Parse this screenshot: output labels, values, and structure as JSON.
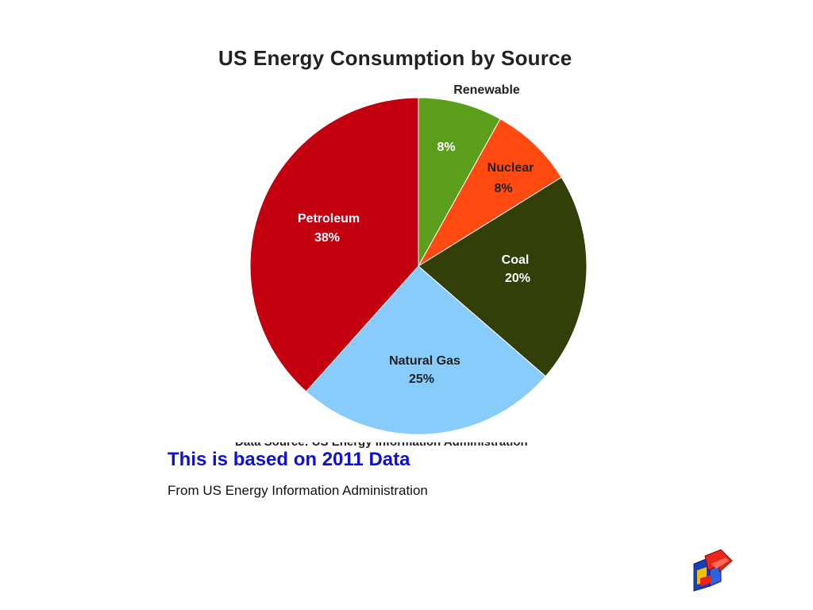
{
  "chart_data": {
    "type": "pie",
    "title": "US Energy Consumption by Source",
    "categories": [
      "Renewable",
      "Nuclear",
      "Coal",
      "Natural Gas",
      "Petroleum"
    ],
    "values": [
      8,
      8,
      20,
      25,
      38
    ],
    "value_labels": [
      "8%",
      "8%",
      "20%",
      "25%",
      "38%"
    ],
    "unit": "%",
    "colors": [
      "#5a9e1c",
      "#ff4a12",
      "#333f08",
      "#87ccfb",
      "#c2000f"
    ],
    "legend": "none",
    "source_note": "Data Source: US Energy Information Administration"
  },
  "slide": {
    "headline": "This is based on 2011 Data",
    "subline": "From US Energy Information Administration"
  },
  "colors": {
    "headline": "#1010d0",
    "background": "#ffffff"
  },
  "icons": {
    "logo": "arrow-cube-logo-icon"
  }
}
